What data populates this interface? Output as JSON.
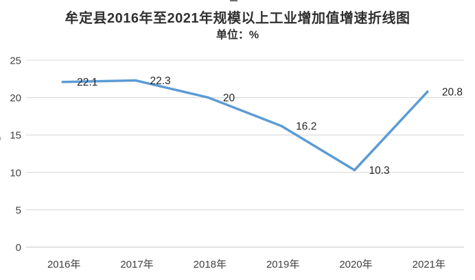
{
  "chart_data": {
    "type": "line",
    "title": "牟定县2016年至2021年规模以上工业增加值增速折线图",
    "subtitle": "单位：%",
    "categories": [
      "2016年",
      "2017年",
      "2018年",
      "2019年",
      "2020年",
      "2021年"
    ],
    "values": [
      22.1,
      22.3,
      20,
      16.2,
      10.3,
      20.8
    ],
    "data_labels": [
      "22.1",
      "22.3",
      "20",
      "16.2",
      "10.3",
      "20.8"
    ],
    "y_ticks": [
      0,
      5,
      10,
      15,
      20,
      25
    ],
    "ylim": [
      0,
      25
    ],
    "xlabel": "",
    "ylabel": "",
    "grid": true,
    "legend": "none",
    "line_color": "#5B9BD5",
    "grid_color": "#D9D9D9",
    "tick_text_color": "#404040",
    "label_text_color": "#262626",
    "y_axis_partial_glyph": "）"
  }
}
